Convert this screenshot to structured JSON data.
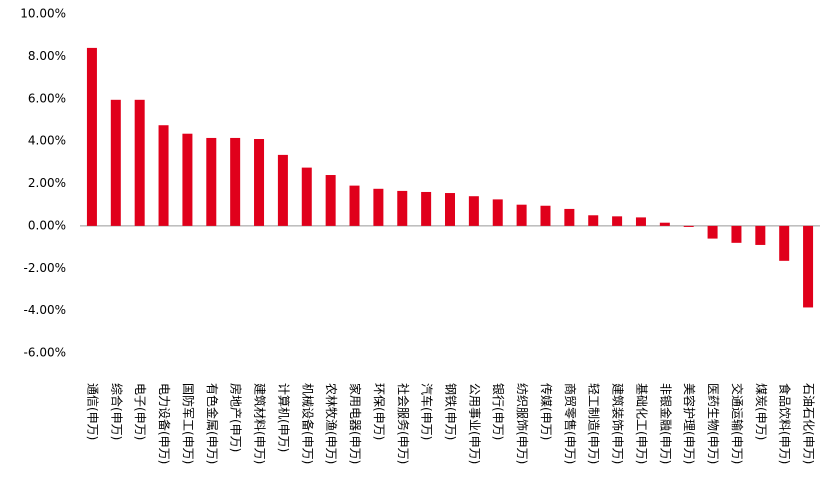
{
  "chart_data": {
    "type": "bar",
    "categories": [
      "通信(申万)",
      "综合(申万)",
      "电子(申万)",
      "电力设备(申万)",
      "国防军工(申万)",
      "有色金属(申万)",
      "房地产(申万)",
      "建筑材料(申万)",
      "计算机(申万)",
      "机械设备(申万)",
      "农林牧渔(申万)",
      "家用电器(申万)",
      "环保(申万)",
      "社会服务(申万)",
      "汽车(申万)",
      "钢铁(申万)",
      "公用事业(申万)",
      "银行(申万)",
      "纺织服饰(申万)",
      "传媒(申万)",
      "商贸零售(申万)",
      "轻工制造(申万)",
      "建筑装饰(申万)",
      "基础化工(申万)",
      "非银金融(申万)",
      "美容护理(申万)",
      "医药生物(申万)",
      "交通运输(申万)",
      "煤炭(申万)",
      "食品饮料(申万)",
      "石油石化(申万)"
    ],
    "values": [
      8.4,
      5.95,
      5.95,
      4.75,
      4.35,
      4.15,
      4.15,
      4.1,
      3.35,
      2.75,
      2.4,
      1.9,
      1.75,
      1.65,
      1.6,
      1.55,
      1.4,
      1.25,
      1.0,
      0.95,
      0.8,
      0.5,
      0.45,
      0.4,
      0.15,
      -0.05,
      -0.6,
      -0.8,
      -0.9,
      -1.65,
      -3.85
    ],
    "color": "#e0001b",
    "ylim": [
      -6,
      10
    ],
    "yticks": [
      {
        "value": -6,
        "label": "-6.00%"
      },
      {
        "value": -4,
        "label": "-4.00%"
      },
      {
        "value": -2,
        "label": "-2.00%"
      },
      {
        "value": 0,
        "label": "0.00%"
      },
      {
        "value": 2,
        "label": "2.00%"
      },
      {
        "value": 4,
        "label": "4.00%"
      },
      {
        "value": 6,
        "label": "6.00%"
      },
      {
        "value": 8,
        "label": "8.00%"
      },
      {
        "value": 10,
        "label": "10.00%"
      }
    ],
    "grid": false
  }
}
